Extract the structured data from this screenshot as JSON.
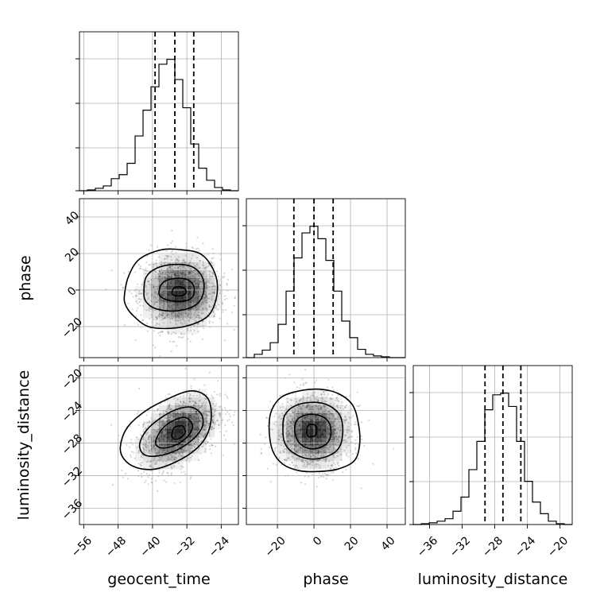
{
  "chart_data": {
    "type": "corner",
    "parameters": [
      "geocent_time",
      "phase",
      "luminosity_distance"
    ],
    "axis_labels": {
      "geocent_time": "geocent_time",
      "phase": "phase",
      "luminosity_distance": "luminosity_distance"
    },
    "ranges": {
      "geocent_time": [
        -57,
        -20
      ],
      "phase": [
        -37,
        50
      ],
      "luminosity_distance": [
        -38,
        -18.5
      ]
    },
    "ticks": {
      "geocent_time": [
        -56,
        -48,
        -40,
        -32,
        -24
      ],
      "phase": [
        -20,
        0,
        20,
        40
      ],
      "phase_diag": [
        -20,
        0,
        20,
        40
      ],
      "luminosity_distance": [
        -36,
        -32,
        -28,
        -24,
        -20
      ]
    },
    "quantiles": {
      "geocent_time": [
        -39.4,
        -34.8,
        -30.4
      ],
      "phase": [
        -11,
        0,
        10.5
      ],
      "luminosity_distance": [
        -29.2,
        -27.0,
        -24.8
      ]
    },
    "histograms": {
      "geocent_time": {
        "edges": [
          -57,
          -55.15,
          -53.3,
          -51.45,
          -49.6,
          -47.75,
          -45.9,
          -44.05,
          -42.2,
          -40.35,
          -38.5,
          -36.65,
          -34.8,
          -32.95,
          -31.1,
          -29.25,
          -27.4,
          -25.55,
          -23.7,
          -21.85,
          -20
        ],
        "counts": [
          0,
          1,
          3,
          6,
          15,
          20,
          34,
          68,
          100,
          129,
          157,
          163,
          138,
          103,
          58,
          28,
          13,
          4,
          1,
          0
        ]
      },
      "phase": {
        "edges": [
          -37,
          -32.65,
          -28.3,
          -23.95,
          -19.6,
          -15.25,
          -10.9,
          -6.55,
          -2.2,
          2.15,
          6.5,
          10.85,
          15.2,
          19.55,
          23.9,
          28.25,
          32.6,
          36.95,
          41.3,
          45.65,
          50
        ],
        "counts": [
          0,
          4,
          9,
          18,
          40,
          80,
          120,
          150,
          158,
          143,
          117,
          80,
          44,
          24,
          10,
          4,
          2,
          1,
          0,
          0
        ]
      },
      "luminosity_distance": {
        "edges": [
          -38,
          -37.025,
          -36.05,
          -35.075,
          -34.1,
          -33.125,
          -32.15,
          -31.175,
          -30.2,
          -29.225,
          -28.25,
          -27.275,
          -26.3,
          -25.325,
          -24.35,
          -23.375,
          -22.4,
          -21.425,
          -20.45,
          -19.475,
          -18.5
        ],
        "counts": [
          0,
          1,
          2,
          4,
          7,
          16,
          33,
          66,
          100,
          138,
          156,
          158,
          142,
          100,
          52,
          27,
          13,
          4,
          1,
          0
        ]
      }
    },
    "pairs": [
      {
        "x": "geocent_time",
        "y": "phase",
        "center": [
          -33.5,
          -1.2
        ],
        "contours": [
          [
            [
              -46.5,
              -2
            ],
            [
              -45.5,
              8
            ],
            [
              -43,
              17
            ],
            [
              -38,
              22
            ],
            [
              -33,
              22
            ],
            [
              -29,
              20
            ],
            [
              -26.5,
              14
            ],
            [
              -25,
              5
            ],
            [
              -25.2,
              -5
            ],
            [
              -27,
              -14
            ],
            [
              -31,
              -19
            ],
            [
              -36,
              -21
            ],
            [
              -41,
              -20
            ],
            [
              -44.5,
              -14
            ],
            [
              -46.3,
              -8
            ]
          ],
          [
            [
              -42,
              -1
            ],
            [
              -41.5,
              7
            ],
            [
              -39,
              12
            ],
            [
              -35,
              14
            ],
            [
              -31,
              13
            ],
            [
              -28.6,
              8
            ],
            [
              -28,
              1
            ],
            [
              -29,
              -6
            ],
            [
              -31.5,
              -10
            ],
            [
              -35.5,
              -11.5
            ],
            [
              -39.5,
              -10
            ],
            [
              -41.6,
              -6
            ]
          ],
          [
            [
              -38.5,
              -1
            ],
            [
              -37.6,
              4
            ],
            [
              -35,
              6.3
            ],
            [
              -32,
              5.8
            ],
            [
              -30.4,
              2
            ],
            [
              -30.6,
              -3.5
            ],
            [
              -32.5,
              -6
            ],
            [
              -35.8,
              -5.8
            ],
            [
              -38,
              -3.8
            ]
          ],
          [
            [
              -35.5,
              -1.5
            ],
            [
              -34.8,
              1.4
            ],
            [
              -33,
              1.4
            ],
            [
              -32.1,
              -1
            ],
            [
              -33,
              -3
            ],
            [
              -34.9,
              -3
            ]
          ]
        ]
      },
      {
        "x": "geocent_time",
        "y": "luminosity_distance",
        "center": [
          -34,
          -26.6
        ],
        "contours": [
          [
            [
              -47.5,
              -28.5
            ],
            [
              -46,
              -26.2
            ],
            [
              -42,
              -24.2
            ],
            [
              -36.5,
              -22.6
            ],
            [
              -31,
              -21.6
            ],
            [
              -27.3,
              -22.4
            ],
            [
              -26.3,
              -24.6
            ],
            [
              -27.3,
              -27
            ],
            [
              -30,
              -28.8
            ],
            [
              -34.5,
              -30.3
            ],
            [
              -39.5,
              -31.2
            ],
            [
              -43.8,
              -31
            ],
            [
              -46.6,
              -30
            ]
          ],
          [
            [
              -43,
              -28.2
            ],
            [
              -41.5,
              -26.5
            ],
            [
              -38.3,
              -25
            ],
            [
              -34.5,
              -23.9
            ],
            [
              -31,
              -23.6
            ],
            [
              -28.6,
              -24.5
            ],
            [
              -28.4,
              -26
            ],
            [
              -30.5,
              -27.5
            ],
            [
              -34.5,
              -28.9
            ],
            [
              -39,
              -29.6
            ],
            [
              -42,
              -29.4
            ]
          ],
          [
            [
              -39.3,
              -27.9
            ],
            [
              -37.8,
              -26.3
            ],
            [
              -35,
              -25.2
            ],
            [
              -32.2,
              -24.9
            ],
            [
              -30.7,
              -25.9
            ],
            [
              -31.8,
              -27.2
            ],
            [
              -34.8,
              -28.3
            ],
            [
              -38,
              -28.6
            ]
          ],
          [
            [
              -35.5,
              -27
            ],
            [
              -34.9,
              -26.1
            ],
            [
              -33,
              -25.9
            ],
            [
              -32.4,
              -26.7
            ],
            [
              -33.6,
              -27.4
            ],
            [
              -35,
              -27.5
            ]
          ]
        ]
      },
      {
        "x": "phase",
        "y": "luminosity_distance",
        "center": [
          -0.5,
          -26.6
        ],
        "contours": [
          [
            [
              -24.5,
              -26.5
            ],
            [
              -23.5,
              -24.2
            ],
            [
              -18,
              -22.4
            ],
            [
              -8,
              -21.6
            ],
            [
              3,
              -21.4
            ],
            [
              13,
              -21.9
            ],
            [
              21,
              -23.3
            ],
            [
              24.3,
              -25.6
            ],
            [
              25,
              -28.2
            ],
            [
              22,
              -30.2
            ],
            [
              13,
              -31.2
            ],
            [
              2,
              -31.5
            ],
            [
              -8,
              -31.4
            ],
            [
              -17,
              -30.6
            ],
            [
              -22.5,
              -29
            ]
          ],
          [
            [
              -17,
              -26.5
            ],
            [
              -16,
              -24.6
            ],
            [
              -10,
              -23.4
            ],
            [
              0,
              -23
            ],
            [
              9,
              -23.5
            ],
            [
              14.6,
              -24.8
            ],
            [
              15.7,
              -27
            ],
            [
              13,
              -28.8
            ],
            [
              5,
              -29.8
            ],
            [
              -4,
              -29.9
            ],
            [
              -12,
              -29.1
            ],
            [
              -16,
              -28
            ]
          ],
          [
            [
              -10.5,
              -26.5
            ],
            [
              -9,
              -25.1
            ],
            [
              -3,
              -24.5
            ],
            [
              4,
              -24.7
            ],
            [
              8.5,
              -25.6
            ],
            [
              9,
              -27.3
            ],
            [
              5,
              -28.4
            ],
            [
              -2,
              -28.7
            ],
            [
              -8,
              -28
            ]
          ],
          [
            [
              -4,
              -26.6
            ],
            [
              -3,
              -25.8
            ],
            [
              0.5,
              -25.8
            ],
            [
              1.5,
              -26.4
            ],
            [
              0.5,
              -27.1
            ],
            [
              -3,
              -27.2
            ]
          ]
        ]
      }
    ]
  }
}
